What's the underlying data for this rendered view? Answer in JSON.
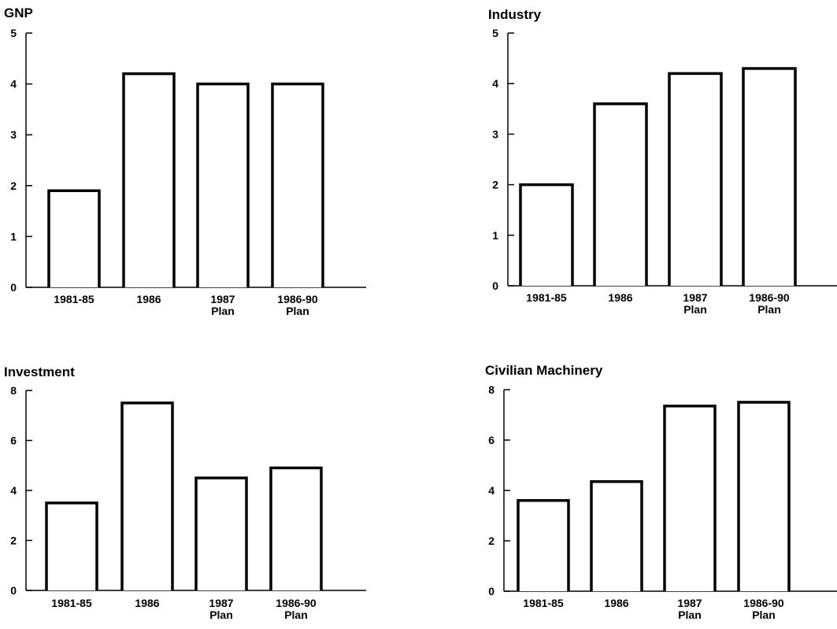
{
  "chart_data": [
    {
      "type": "bar",
      "title": "GNP",
      "categories": [
        "1981-85",
        "1986",
        "1987\nPlan",
        "1986-90\nPlan"
      ],
      "values": [
        1.9,
        4.2,
        4.0,
        4.0
      ],
      "ylim": [
        0,
        5
      ],
      "yticks": [
        0,
        1,
        2,
        3,
        4,
        5
      ],
      "xlabel": "",
      "ylabel": "",
      "grid": false
    },
    {
      "type": "bar",
      "title": "Industry",
      "categories": [
        "1981-85",
        "1986",
        "1987\nPlan",
        "1986-90\nPlan"
      ],
      "values": [
        2.0,
        3.6,
        4.2,
        4.3
      ],
      "ylim": [
        0,
        5
      ],
      "yticks": [
        0,
        1,
        2,
        3,
        4,
        5
      ],
      "xlabel": "",
      "ylabel": "",
      "grid": false
    },
    {
      "type": "bar",
      "title": "Investment",
      "categories": [
        "1981-85",
        "1986",
        "1987\nPlan",
        "1986-90\nPlan"
      ],
      "values": [
        3.5,
        7.5,
        4.5,
        4.9
      ],
      "ylim": [
        0,
        8
      ],
      "yticks": [
        0,
        2,
        4,
        6,
        8
      ],
      "xlabel": "",
      "ylabel": "",
      "grid": false
    },
    {
      "type": "bar",
      "title": "Civilian Machinery",
      "categories": [
        "1981-85",
        "1986",
        "1987\nPlan",
        "1986-90\nPlan"
      ],
      "values": [
        3.6,
        4.35,
        7.35,
        7.5
      ],
      "ylim": [
        0,
        8
      ],
      "yticks": [
        0,
        2,
        4,
        6,
        8
      ],
      "xlabel": "",
      "ylabel": "",
      "grid": false
    }
  ]
}
